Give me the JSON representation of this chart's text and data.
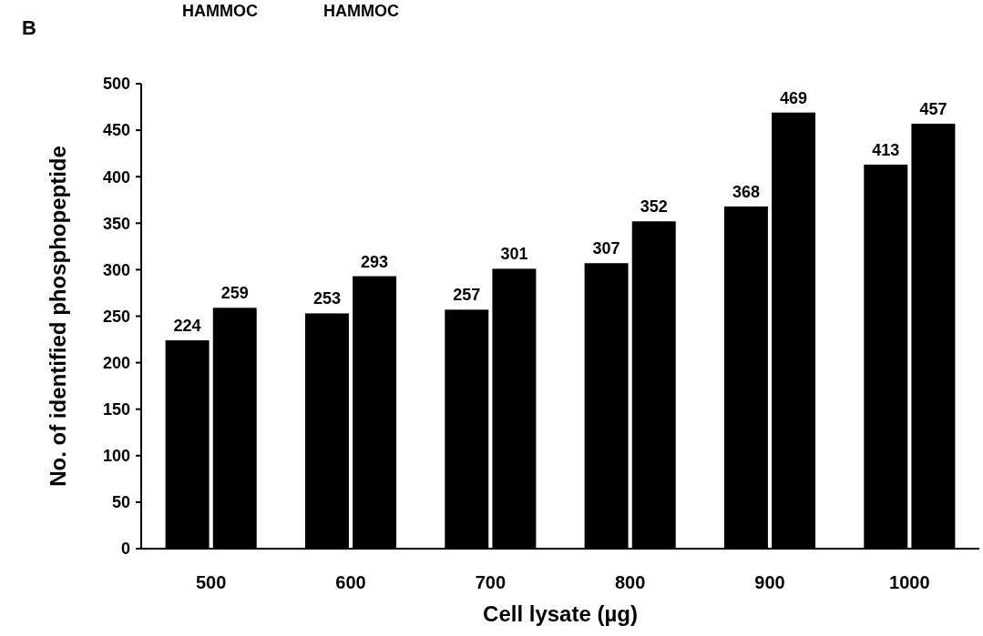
{
  "chart_data": {
    "type": "bar",
    "title": "B",
    "xlabel": "Cell lysate (µg)",
    "ylabel": "No. of identified phosphopeptide",
    "categories": [
      "500",
      "600",
      "700",
      "800",
      "900",
      "1000"
    ],
    "series": [
      {
        "color": "#000000",
        "values": [
          224,
          253,
          257,
          307,
          368,
          413
        ]
      },
      {
        "color": "#000000",
        "values": [
          259,
          293,
          301,
          352,
          469,
          457
        ]
      }
    ],
    "ylim": [
      0,
      500
    ],
    "yticks": [
      0,
      50,
      100,
      150,
      200,
      250,
      300,
      350,
      400,
      450,
      500
    ],
    "data_labels": true,
    "annotations": [
      "HAMMOC",
      "HAMMOC"
    ]
  }
}
